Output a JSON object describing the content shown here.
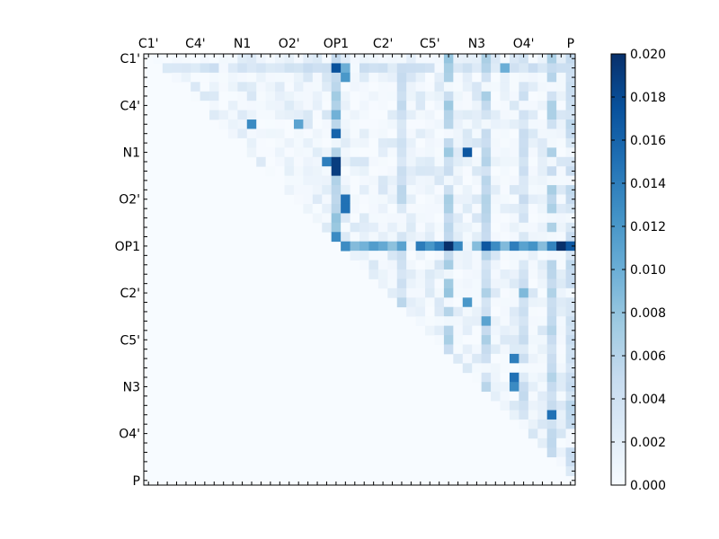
{
  "chart_data": {
    "type": "heatmap",
    "title": "",
    "xlabel": "",
    "ylabel": "",
    "n": 46,
    "tick_labels": [
      "C1'",
      "C4'",
      "N1",
      "O2'",
      "OP1",
      "C2'",
      "C5'",
      "N3",
      "O4'",
      "P"
    ],
    "tick_indices": [
      0,
      5,
      10,
      15,
      20,
      25,
      30,
      35,
      40,
      45
    ],
    "colorbar": {
      "min": 0.0,
      "max": 0.02,
      "ticks": [
        "0.000",
        "0.002",
        "0.004",
        "0.006",
        "0.008",
        "0.010",
        "0.012",
        "0.014",
        "0.016",
        "0.018",
        "0.020"
      ]
    },
    "colormap": [
      "#f7fbff",
      "#deebf7",
      "#c6dbef",
      "#9ecae1",
      "#6baed6",
      "#4292c6",
      "#2171b5",
      "#08519c",
      "#08306b"
    ],
    "strong_rows": [
      {
        "row": 20,
        "base": 0.012
      },
      {
        "row": 1,
        "base": 0.004
      }
    ],
    "strong_cols": [
      {
        "col": 20,
        "base": 0.009
      },
      {
        "col": 32,
        "base": 0.007
      },
      {
        "col": 36,
        "base": 0.006
      },
      {
        "col": 43,
        "base": 0.006
      },
      {
        "col": 45,
        "base": 0.005
      },
      {
        "col": 27,
        "base": 0.005
      },
      {
        "col": 40,
        "base": 0.0045
      }
    ],
    "hot_cells": [
      [
        1,
        20,
        0.0175
      ],
      [
        1,
        21,
        0.01
      ],
      [
        1,
        38,
        0.01
      ],
      [
        2,
        21,
        0.012
      ],
      [
        7,
        11,
        0.013
      ],
      [
        7,
        16,
        0.011
      ],
      [
        8,
        20,
        0.016
      ],
      [
        10,
        34,
        0.017
      ],
      [
        11,
        19,
        0.014
      ],
      [
        11,
        20,
        0.019
      ],
      [
        12,
        20,
        0.019
      ],
      [
        15,
        21,
        0.015
      ],
      [
        16,
        21,
        0.015
      ],
      [
        19,
        20,
        0.013
      ],
      [
        20,
        32,
        0.02
      ],
      [
        20,
        36,
        0.017
      ],
      [
        20,
        44,
        0.02
      ],
      [
        20,
        45,
        0.017
      ],
      [
        25,
        40,
        0.009
      ],
      [
        26,
        34,
        0.012
      ],
      [
        28,
        36,
        0.011
      ],
      [
        32,
        39,
        0.014
      ],
      [
        34,
        39,
        0.015
      ],
      [
        35,
        39,
        0.013
      ],
      [
        38,
        43,
        0.015
      ]
    ]
  }
}
